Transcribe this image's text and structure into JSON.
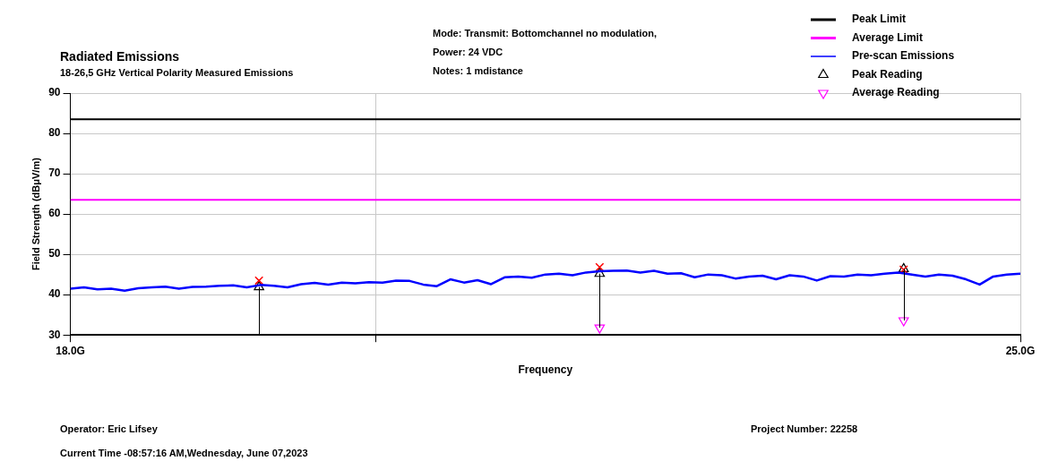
{
  "chart_data": {
    "type": "line",
    "title": "Radiated Emissions",
    "subtitle": "18-26,5 GHz Vertical Polarity Measured Emissions",
    "xlabel": "Frequency",
    "ylabel": "Field Strength (dBμV/m)",
    "annotations": [
      "Mode: Transmit: Bottomchannel no modulation,",
      "Power: 24 VDC",
      "Notes: 1 mdistance",
      "Operator: Eric Lifsey",
      "Current Time -08:57:16 AM,Wednesday, June 07,2023",
      "Project Number: 22258"
    ],
    "xlim": [
      18,
      25
    ],
    "xticks": [
      {
        "value": 18,
        "label": "18.0G"
      },
      {
        "value": 20.25,
        "label": null
      },
      {
        "value": 25,
        "label": "25.0G"
      }
    ],
    "ylim": [
      30,
      90
    ],
    "yticks": [
      30,
      40,
      50,
      60,
      70,
      80,
      90
    ],
    "grid": true,
    "legend": "top right",
    "series": [
      {
        "name": "Peak Limit",
        "color": "#000000",
        "marker": "none",
        "x": [
          18,
          25
        ],
        "values": [
          83.5,
          83.5
        ]
      },
      {
        "name": "Average Limit",
        "color": "#ff00ff",
        "marker": "none",
        "x": [
          18,
          25
        ],
        "values": [
          63.5,
          63.5
        ]
      },
      {
        "name": "Pre-scan Emissions",
        "color": "#0000ff",
        "marker": "none",
        "x": [
          18,
          18.1,
          18.2,
          18.3,
          18.4,
          18.5,
          18.6,
          18.7,
          18.8,
          18.9,
          19,
          19.1,
          19.2,
          19.3,
          19.4,
          19.5,
          19.6,
          19.7,
          19.8,
          19.9,
          20,
          20.1,
          20.2,
          20.3,
          20.4,
          20.5,
          20.6,
          20.7,
          20.8,
          20.9,
          21,
          21.1,
          21.2,
          21.3,
          21.4,
          21.5,
          21.6,
          21.7,
          21.8,
          21.9,
          22,
          22.1,
          22.2,
          22.3,
          22.4,
          22.5,
          22.6,
          22.7,
          22.8,
          22.9,
          23,
          23.1,
          23.2,
          23.3,
          23.4,
          23.5,
          23.6,
          23.7,
          23.8,
          23.9,
          24,
          24.1,
          24.2,
          24.3,
          24.4,
          24.5,
          24.6,
          24.7,
          24.8,
          24.9,
          25
        ],
        "values": [
          41.5,
          41.8,
          41.3,
          41.5,
          41,
          41.6,
          41.8,
          42,
          41.5,
          41.9,
          42,
          42.2,
          42.3,
          41.8,
          42.4,
          42.2,
          41.8,
          42.6,
          42.9,
          42.5,
          43,
          42.8,
          43.1,
          43,
          43.5,
          43.4,
          42.5,
          42.1,
          43.8,
          43,
          43.6,
          42.6,
          44.3,
          44.5,
          44.2,
          45,
          45.2,
          44.8,
          45.5,
          45.8,
          45.9,
          46,
          45.5,
          45.9,
          45.2,
          45.3,
          44.3,
          45,
          44.8,
          44,
          44.5,
          44.7,
          43.8,
          44.8,
          44.5,
          43.5,
          44.6,
          44.5,
          45,
          44.8,
          45.2,
          45.5,
          45,
          44.5,
          45,
          44.7,
          43.8,
          42.5,
          44.5,
          45,
          45.2
        ]
      },
      {
        "type": "scatter",
        "color": "#ff0000",
        "marker": "cross",
        "x": [
          19.39,
          21.9,
          24.14
        ],
        "values": [
          43.5,
          46.8,
          46.2
        ]
      },
      {
        "name": "Peak Reading",
        "type": "scatter",
        "color": "#000000",
        "marker": "triangle",
        "x": [
          19.39,
          21.9,
          24.14
        ],
        "values": [
          41.9,
          45.2,
          46.4
        ],
        "errors": [
          [
            30,
            41.9
          ],
          [
            31.8,
            45.2
          ],
          [
            33.6,
            46.4
          ]
        ]
      },
      {
        "name": "Average Reading",
        "type": "scatter",
        "color": "#ff00ff",
        "marker": "triangle-down",
        "x": [
          21.9,
          24.14
        ],
        "values": [
          31.8,
          33.6
        ]
      }
    ]
  }
}
